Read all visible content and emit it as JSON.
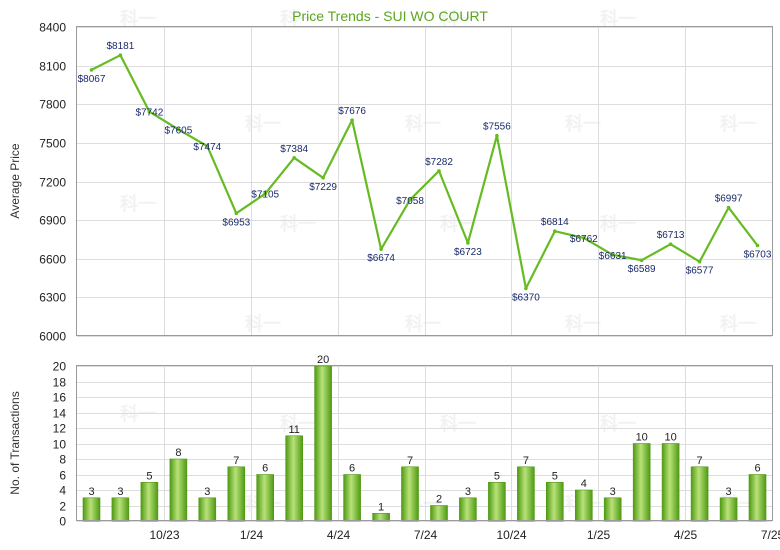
{
  "title": "Price Trends - SUI WO COURT",
  "watermark": "科一",
  "colors": {
    "line": "#66bb22",
    "bar_light": "#b9e27a",
    "bar_dark": "#4e9a12",
    "title": "#5aa61c"
  },
  "chart_data": [
    {
      "type": "line",
      "ylabel": "Average Price",
      "ylim": [
        6000,
        8400
      ],
      "yticks": [
        "6000",
        "6300",
        "6600",
        "6900",
        "7200",
        "7500",
        "7800",
        "8100",
        "8400"
      ],
      "grid": true,
      "values": [
        8067,
        8181,
        7742,
        7605,
        7474,
        6953,
        7105,
        7384,
        7229,
        7676,
        6674,
        7058,
        7282,
        6723,
        7556,
        6370,
        6814,
        6762,
        6631,
        6589,
        6713,
        6577,
        6997,
        6703
      ],
      "labels": [
        "$8067",
        "$8181",
        "$7742",
        "$7605",
        "$7474",
        "$6953",
        "$7105",
        "$7384",
        "$7229",
        "$7676",
        "$6674",
        "$7058",
        "$7282",
        "$6723",
        "$7556",
        "$6370",
        "$6814",
        "$6762",
        "$6631",
        "$6589",
        "$6713",
        "$6577",
        "$6997",
        "$6703"
      ]
    },
    {
      "type": "bar",
      "ylabel": "No. of Transactions",
      "ylim": [
        0,
        20
      ],
      "yticks": [
        "0",
        "2",
        "4",
        "6",
        "8",
        "10",
        "12",
        "14",
        "16",
        "18",
        "20"
      ],
      "grid": true,
      "values": [
        3,
        3,
        5,
        8,
        3,
        7,
        6,
        11,
        20,
        6,
        1,
        7,
        2,
        3,
        5,
        7,
        5,
        4,
        3,
        10,
        10,
        7,
        3,
        6
      ],
      "xticks": [
        "10/23",
        "1/24",
        "4/24",
        "7/24",
        "10/24",
        "1/25",
        "4/25",
        "7/25"
      ]
    }
  ]
}
